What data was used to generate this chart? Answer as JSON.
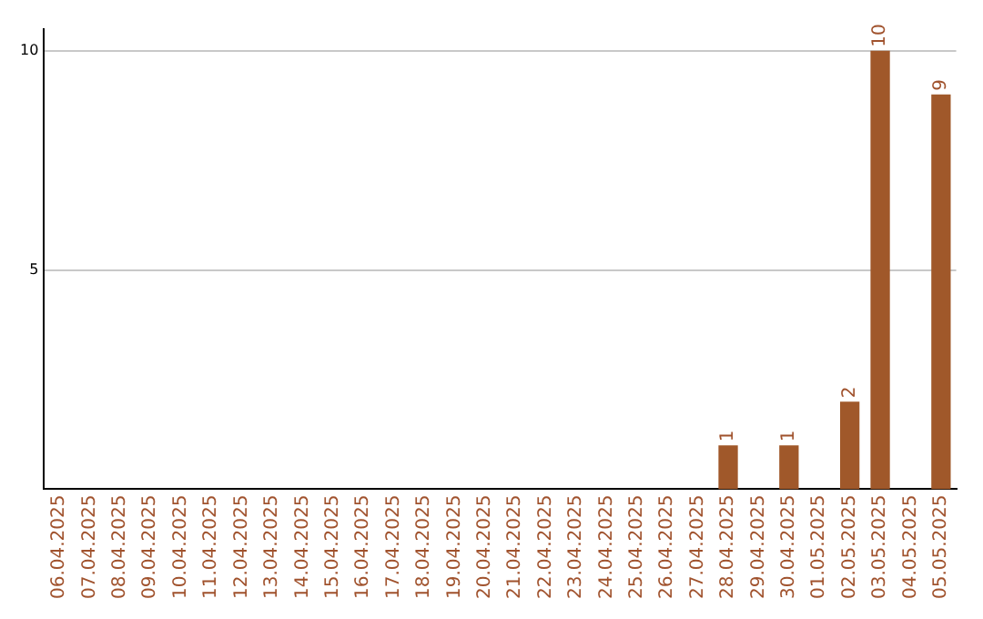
{
  "chart_data": {
    "type": "bar",
    "categories": [
      "06.04.2025",
      "07.04.2025",
      "08.04.2025",
      "09.04.2025",
      "10.04.2025",
      "11.04.2025",
      "12.04.2025",
      "13.04.2025",
      "14.04.2025",
      "15.04.2025",
      "16.04.2025",
      "17.04.2025",
      "18.04.2025",
      "19.04.2025",
      "20.04.2025",
      "21.04.2025",
      "22.04.2025",
      "23.04.2025",
      "24.04.2025",
      "25.04.2025",
      "26.04.2025",
      "27.04.2025",
      "28.04.2025",
      "29.04.2025",
      "30.04.2025",
      "01.05.2025",
      "02.05.2025",
      "03.05.2025",
      "04.05.2025",
      "05.05.2025"
    ],
    "values": [
      0,
      0,
      0,
      0,
      0,
      0,
      0,
      0,
      0,
      0,
      0,
      0,
      0,
      0,
      0,
      0,
      0,
      0,
      0,
      0,
      0,
      0,
      1,
      0,
      1,
      0,
      2,
      10,
      0,
      9
    ],
    "value_labels": [
      null,
      null,
      null,
      null,
      null,
      null,
      null,
      null,
      null,
      null,
      null,
      null,
      null,
      null,
      null,
      null,
      null,
      null,
      null,
      null,
      null,
      null,
      "1",
      null,
      "1",
      null,
      "2",
      "10",
      null,
      "9"
    ],
    "color": "#a0582a",
    "ylim": [
      0,
      10.5
    ],
    "yticks": [
      5,
      10
    ],
    "grid": "y",
    "legend": false
  }
}
